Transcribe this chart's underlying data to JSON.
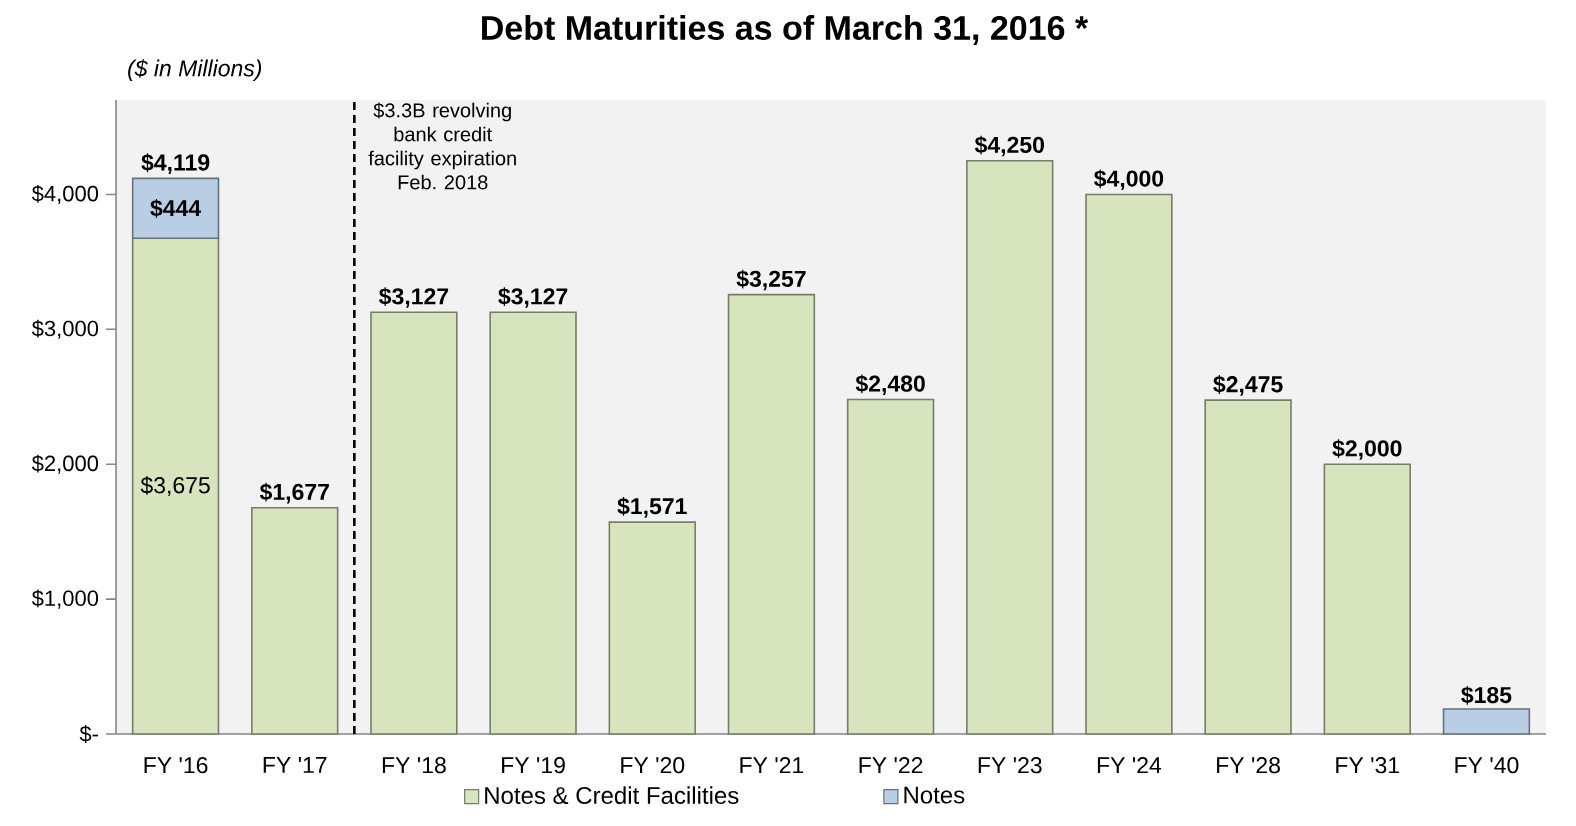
{
  "chart_data": {
    "type": "bar",
    "title": "Debt Maturities as of March 31, 2016 *",
    "ylabel": "($ in Millions)",
    "categories": [
      "FY '16",
      "FY '17",
      "FY '18",
      "FY '19",
      "FY '20",
      "FY '21",
      "FY '22",
      "FY '23",
      "FY '24",
      "FY '28",
      "FY '31",
      "FY '40"
    ],
    "stacked": true,
    "series": [
      {
        "name": "Notes & Credit Facilities",
        "color": "#d7e4bd",
        "values": [
          3675,
          1677,
          3127,
          3127,
          1571,
          3257,
          2480,
          4250,
          4000,
          2475,
          2000,
          null
        ],
        "value_labels": [
          "$3,675",
          "$1,677",
          "$3,127",
          "$3,127",
          "$1,571",
          "$3,257",
          "$2,480",
          "$4,250",
          "$4,000",
          "$2,475",
          "$2,000",
          null
        ]
      },
      {
        "name": "Notes",
        "color": "#b9cde5",
        "values": [
          444,
          null,
          null,
          null,
          null,
          null,
          null,
          null,
          null,
          null,
          null,
          185
        ],
        "value_labels": [
          "$444",
          null,
          null,
          null,
          null,
          null,
          null,
          null,
          null,
          null,
          null,
          "$185"
        ]
      }
    ],
    "totals": [
      "$4,119",
      null,
      null,
      null,
      null,
      null,
      null,
      null,
      null,
      null,
      null,
      null
    ],
    "ylim": [
      0,
      4700
    ],
    "yticks": [
      {
        "value": 0,
        "label": "$-"
      },
      {
        "value": 1000,
        "label": "$1,000"
      },
      {
        "value": 2000,
        "label": "$2,000"
      },
      {
        "value": 3000,
        "label": "$3,000"
      },
      {
        "value": 4000,
        "label": "$4,000"
      }
    ],
    "annotations": [
      "$3.3B revolving bank credit facility expiration Feb. 2018"
    ],
    "legend": "bottom"
  }
}
